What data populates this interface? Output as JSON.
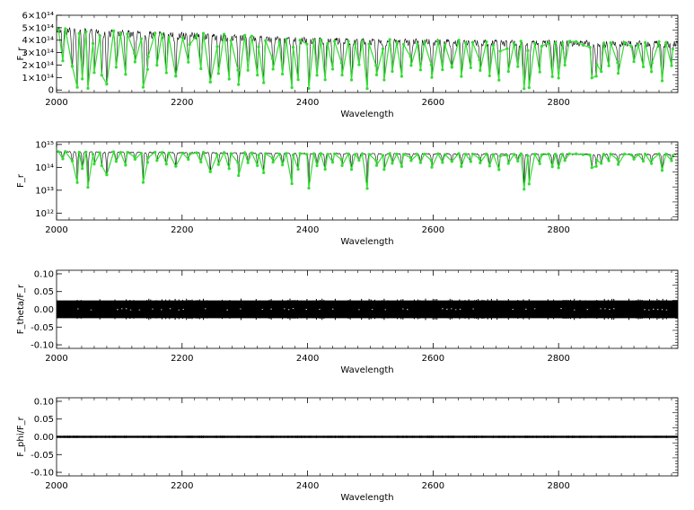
{
  "chart_data": [
    {
      "type": "line",
      "ylabel": "F_r",
      "xlabel": "Wavelength",
      "xlim": [
        2000,
        2990
      ],
      "ylim": [
        -20000000000000.0,
        600000000000000.0
      ],
      "yscale": "linear",
      "x_ticks": [
        {
          "value": 2000,
          "label": "2000"
        },
        {
          "value": 2200,
          "label": "2200"
        },
        {
          "value": 2400,
          "label": "2400"
        },
        {
          "value": 2600,
          "label": "2600"
        },
        {
          "value": 2800,
          "label": "2800"
        }
      ],
      "y_ticks": [
        {
          "value": 0,
          "label": "0"
        },
        {
          "value": 100000000000000.0,
          "label": "1×10¹⁴"
        },
        {
          "value": 200000000000000.0,
          "label": "2×10¹⁴"
        },
        {
          "value": 300000000000000.0,
          "label": "3×10¹⁴"
        },
        {
          "value": 400000000000000.0,
          "label": "4×10¹⁴"
        },
        {
          "value": 500000000000000.0,
          "label": "5×10¹⁴"
        },
        {
          "value": 600000000000000.0,
          "label": "6×10¹⁴"
        }
      ],
      "series": [
        {
          "color": "#000000",
          "style": "line",
          "continuum": [
            [
              2000,
              500000000000000.0
            ],
            [
              2100,
              480000000000000.0
            ],
            [
              2200,
              460000000000000.0
            ],
            [
              2300,
              440000000000000.0
            ],
            [
              2400,
              420000000000000.0
            ],
            [
              2500,
              410000000000000.0
            ],
            [
              2600,
              405000000000000.0
            ],
            [
              2700,
              400000000000000.0
            ],
            [
              2800,
              395000000000000.0
            ],
            [
              2990,
              390000000000000.0
            ]
          ],
          "absorption_lines": [
            {
              "x": 2010,
              "depth": 0.5
            },
            {
              "x": 2025,
              "depth": 0.6
            },
            {
              "x": 2033,
              "depth": 0.95
            },
            {
              "x": 2041,
              "depth": 0.8
            },
            {
              "x": 2050,
              "depth": 0.97
            },
            {
              "x": 2060,
              "depth": 0.7
            },
            {
              "x": 2072,
              "depth": 0.75
            },
            {
              "x": 2080,
              "depth": 0.9
            },
            {
              "x": 2095,
              "depth": 0.6
            },
            {
              "x": 2110,
              "depth": 0.7
            },
            {
              "x": 2125,
              "depth": 0.5
            },
            {
              "x": 2138,
              "depth": 0.95
            },
            {
              "x": 2145,
              "depth": 0.6
            },
            {
              "x": 2160,
              "depth": 0.55
            },
            {
              "x": 2175,
              "depth": 0.7
            },
            {
              "x": 2190,
              "depth": 0.75
            },
            {
              "x": 2210,
              "depth": 0.5
            },
            {
              "x": 2230,
              "depth": 0.6
            },
            {
              "x": 2245,
              "depth": 0.85
            },
            {
              "x": 2258,
              "depth": 0.7
            },
            {
              "x": 2275,
              "depth": 0.8
            },
            {
              "x": 2290,
              "depth": 0.9
            },
            {
              "x": 2305,
              "depth": 0.6
            },
            {
              "x": 2320,
              "depth": 0.7
            },
            {
              "x": 2330,
              "depth": 0.85
            },
            {
              "x": 2345,
              "depth": 0.6
            },
            {
              "x": 2360,
              "depth": 0.7
            },
            {
              "x": 2375,
              "depth": 0.95
            },
            {
              "x": 2385,
              "depth": 0.8
            },
            {
              "x": 2402,
              "depth": 0.97
            },
            {
              "x": 2415,
              "depth": 0.7
            },
            {
              "x": 2428,
              "depth": 0.8
            },
            {
              "x": 2440,
              "depth": 0.6
            },
            {
              "x": 2455,
              "depth": 0.7
            },
            {
              "x": 2470,
              "depth": 0.8
            },
            {
              "x": 2482,
              "depth": 0.5
            },
            {
              "x": 2495,
              "depth": 0.97
            },
            {
              "x": 2510,
              "depth": 0.7
            },
            {
              "x": 2522,
              "depth": 0.8
            },
            {
              "x": 2535,
              "depth": 0.6
            },
            {
              "x": 2550,
              "depth": 0.7
            },
            {
              "x": 2565,
              "depth": 0.5
            },
            {
              "x": 2580,
              "depth": 0.6
            },
            {
              "x": 2598,
              "depth": 0.75
            },
            {
              "x": 2615,
              "depth": 0.6
            },
            {
              "x": 2630,
              "depth": 0.5
            },
            {
              "x": 2645,
              "depth": 0.7
            },
            {
              "x": 2660,
              "depth": 0.55
            },
            {
              "x": 2675,
              "depth": 0.6
            },
            {
              "x": 2690,
              "depth": 0.7
            },
            {
              "x": 2705,
              "depth": 0.8
            },
            {
              "x": 2720,
              "depth": 0.6
            },
            {
              "x": 2735,
              "depth": 0.5
            },
            {
              "x": 2745,
              "depth": 0.97
            },
            {
              "x": 2753,
              "depth": 0.95
            },
            {
              "x": 2770,
              "depth": 0.6
            },
            {
              "x": 2790,
              "depth": 0.7
            },
            {
              "x": 2800,
              "depth": 0.75
            },
            {
              "x": 2810,
              "depth": 0.5
            },
            {
              "x": 2853,
              "depth": 0.75
            },
            {
              "x": 2860,
              "depth": 0.7
            },
            {
              "x": 2868,
              "depth": 0.6
            },
            {
              "x": 2880,
              "depth": 0.5
            },
            {
              "x": 2895,
              "depth": 0.65
            },
            {
              "x": 2920,
              "depth": 0.4
            },
            {
              "x": 2935,
              "depth": 0.5
            },
            {
              "x": 2948,
              "depth": 0.6
            },
            {
              "x": 2965,
              "depth": 0.8
            },
            {
              "x": 2980,
              "depth": 0.5
            }
          ]
        },
        {
          "color": "#33dd33",
          "style": "line+markers"
        }
      ]
    },
    {
      "type": "line",
      "ylabel": "F_r",
      "xlabel": "Wavelength",
      "xlim": [
        2000,
        2990
      ],
      "ylim": [
        500000000000.0,
        1300000000000000.0
      ],
      "yscale": "log",
      "x_ticks": [
        {
          "value": 2000,
          "label": "2000"
        },
        {
          "value": 2200,
          "label": "2200"
        },
        {
          "value": 2400,
          "label": "2400"
        },
        {
          "value": 2600,
          "label": "2600"
        },
        {
          "value": 2800,
          "label": "2800"
        }
      ],
      "y_ticks": [
        {
          "value": 1000000000000.0,
          "label": "10¹²"
        },
        {
          "value": 10000000000000.0,
          "label": "10¹³"
        },
        {
          "value": 100000000000000.0,
          "label": "10¹⁴"
        },
        {
          "value": 1000000000000000.0,
          "label": "10¹⁵"
        }
      ],
      "series": [
        {
          "color": "#000000",
          "style": "line"
        },
        {
          "color": "#33dd33",
          "style": "line+markers"
        }
      ]
    },
    {
      "type": "line",
      "ylabel": "F_theta/F_r",
      "xlabel": "Wavelength",
      "xlim": [
        2000,
        2990
      ],
      "ylim": [
        -0.11,
        0.11
      ],
      "yscale": "linear",
      "band": [
        -0.025,
        0.025
      ],
      "x_ticks": [
        {
          "value": 2000,
          "label": "2000"
        },
        {
          "value": 2200,
          "label": "2200"
        },
        {
          "value": 2400,
          "label": "2400"
        },
        {
          "value": 2600,
          "label": "2600"
        },
        {
          "value": 2800,
          "label": "2800"
        }
      ],
      "y_ticks": [
        {
          "value": 0.1,
          "label": "0.10"
        },
        {
          "value": 0.05,
          "label": "0.05"
        },
        {
          "value": 0.0,
          "label": "0.00"
        },
        {
          "value": -0.05,
          "label": "-0.05"
        },
        {
          "value": -0.1,
          "label": "-0.10"
        }
      ],
      "series": [
        {
          "color": "#000000",
          "style": "line"
        }
      ]
    },
    {
      "type": "line",
      "ylabel": "F_phi/F_r",
      "xlabel": "Wavelength",
      "xlim": [
        2000,
        2990
      ],
      "ylim": [
        -0.11,
        0.11
      ],
      "yscale": "linear",
      "band": [
        -0.003,
        0.003
      ],
      "x_ticks": [
        {
          "value": 2000,
          "label": "2000"
        },
        {
          "value": 2200,
          "label": "2200"
        },
        {
          "value": 2400,
          "label": "2400"
        },
        {
          "value": 2600,
          "label": "2600"
        },
        {
          "value": 2800,
          "label": "2800"
        }
      ],
      "y_ticks": [
        {
          "value": 0.1,
          "label": "0.10"
        },
        {
          "value": 0.05,
          "label": "0.05"
        },
        {
          "value": 0.0,
          "label": "0.00"
        },
        {
          "value": -0.05,
          "label": "-0.05"
        },
        {
          "value": -0.1,
          "label": "-0.10"
        }
      ],
      "series": [
        {
          "color": "#000000",
          "style": "line"
        }
      ]
    }
  ]
}
